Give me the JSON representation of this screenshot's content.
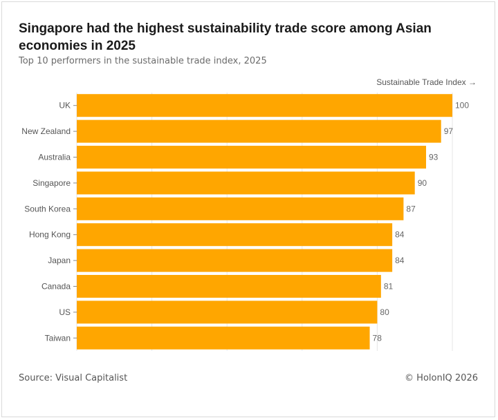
{
  "title": "Singapore had the highest sustainability trade score among Asian economies in 2025",
  "subtitle": "Top 10 performers in the sustainable trade index, 2025",
  "axis_label": "Sustainable Trade Index →",
  "source": "Source: Visual Capitalist",
  "credit": "© HolonIQ 2026",
  "colors": {
    "bar": "#FFA600",
    "grid": "#e6e6e6",
    "tick_text": "#555555",
    "value_text": "#666666"
  },
  "chart_data": {
    "type": "bar",
    "orientation": "horizontal",
    "title": "Singapore had the highest sustainability trade score among Asian economies in 2025",
    "subtitle": "Top 10 performers in the sustainable trade index, 2025",
    "xlabel": "Sustainable Trade Index →",
    "ylabel": "",
    "xlim": [
      0,
      100
    ],
    "grid": true,
    "categories": [
      "UK",
      "New Zealand",
      "Australia",
      "Singapore",
      "South Korea",
      "Hong Kong",
      "Japan",
      "Canada",
      "US",
      "Taiwan"
    ],
    "values": [
      100,
      97,
      93,
      90,
      87,
      84,
      84,
      81,
      80,
      78
    ]
  }
}
